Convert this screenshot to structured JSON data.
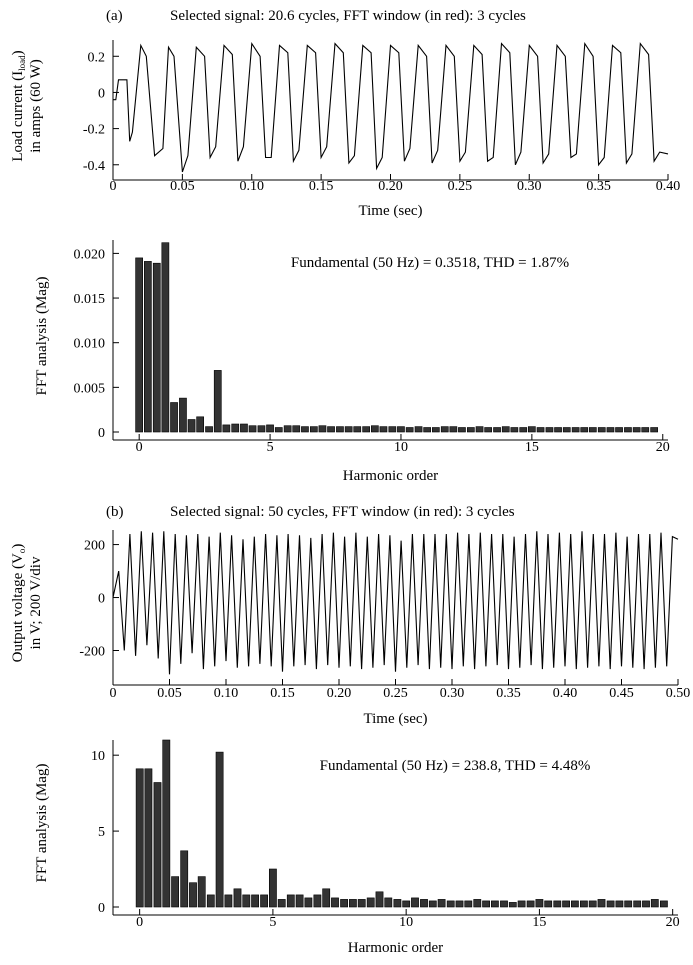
{
  "chart_data": [
    {
      "type": "line",
      "panel_label": "(a)",
      "title": "Selected signal: 20.6 cycles, FFT window (in red): 3 cycles",
      "xlabel": "Time (sec)",
      "ylabel": [
        "Load current (I",
        "load",
        ")",
        "in amps (60 W)"
      ],
      "xlim": [
        0,
        0.4
      ],
      "ylim": [
        -0.44,
        0.29
      ],
      "xticks": [
        0,
        0.05,
        0.1,
        0.15,
        0.2,
        0.25,
        0.3,
        0.35,
        0.4
      ],
      "xtick_labels": [
        "0",
        "0.05",
        "0.10",
        "0.15",
        "0.20",
        "0.25",
        "0.30",
        "0.35",
        "0.40"
      ],
      "yticks": [
        -0.4,
        -0.2,
        0,
        0.2
      ],
      "ytick_labels": [
        "-0.4",
        "-0.2",
        "0",
        "0.2"
      ],
      "x": [
        0,
        0.002,
        0.004,
        0.01,
        0.012,
        0.014,
        0.02,
        0.024,
        0.03,
        0.036,
        0.04,
        0.044,
        0.05,
        0.054,
        0.06,
        0.066,
        0.07,
        0.074,
        0.08,
        0.086,
        0.09,
        0.094,
        0.1,
        0.106,
        0.11,
        0.114,
        0.12,
        0.126,
        0.13,
        0.134,
        0.14,
        0.146,
        0.15,
        0.154,
        0.16,
        0.166,
        0.17,
        0.174,
        0.18,
        0.186,
        0.19,
        0.194,
        0.2,
        0.206,
        0.21,
        0.214,
        0.22,
        0.226,
        0.23,
        0.234,
        0.24,
        0.246,
        0.25,
        0.254,
        0.26,
        0.266,
        0.27,
        0.274,
        0.28,
        0.286,
        0.29,
        0.294,
        0.3,
        0.306,
        0.31,
        0.314,
        0.32,
        0.326,
        0.33,
        0.334,
        0.34,
        0.346,
        0.35,
        0.354,
        0.36,
        0.366,
        0.37,
        0.374,
        0.38,
        0.386,
        0.39,
        0.394,
        0.4
      ],
      "y": [
        -0.04,
        -0.04,
        0.07,
        0.07,
        -0.27,
        -0.22,
        0.26,
        0.2,
        -0.35,
        -0.31,
        0.25,
        0.2,
        -0.44,
        -0.35,
        0.25,
        0.2,
        -0.36,
        -0.3,
        0.26,
        0.21,
        -0.38,
        -0.3,
        0.27,
        0.2,
        -0.36,
        -0.36,
        0.26,
        0.22,
        -0.38,
        -0.32,
        0.26,
        0.22,
        -0.36,
        -0.3,
        0.27,
        0.22,
        -0.39,
        -0.35,
        0.26,
        0.22,
        -0.42,
        -0.36,
        0.26,
        0.22,
        -0.38,
        -0.31,
        0.26,
        0.2,
        -0.39,
        -0.32,
        0.26,
        0.2,
        -0.38,
        -0.33,
        0.26,
        0.21,
        -0.38,
        -0.36,
        0.27,
        0.22,
        -0.4,
        -0.33,
        0.26,
        0.2,
        -0.39,
        -0.34,
        0.26,
        0.2,
        -0.36,
        -0.34,
        0.27,
        0.2,
        -0.4,
        -0.36,
        0.26,
        0.22,
        -0.39,
        -0.34,
        0.27,
        0.21,
        -0.38,
        -0.33,
        -0.34
      ]
    },
    {
      "type": "bar",
      "title": "",
      "annotation": "Fundamental (50 Hz) = 0.3518, THD = 1.87%",
      "xlabel": "Harmonic order",
      "ylabel": "FFT analysis (Mag)",
      "xlim": [
        -1,
        20.2
      ],
      "ylim": [
        0,
        0.0215
      ],
      "xticks": [
        0,
        5,
        10,
        15,
        20
      ],
      "xtick_labels": [
        "0",
        "5",
        "10",
        "15",
        "20"
      ],
      "yticks": [
        0,
        0.005,
        0.01,
        0.015,
        0.02
      ],
      "ytick_labels": [
        "0",
        "0.005",
        "0.010",
        "0.015",
        "0.020"
      ],
      "bar_width_units": 0.27,
      "x": [
        0,
        0.33,
        0.67,
        1,
        1.33,
        1.67,
        2,
        2.33,
        2.67,
        3,
        3.33,
        3.67,
        4,
        4.33,
        4.67,
        5,
        5.33,
        5.67,
        6,
        6.33,
        6.67,
        7,
        7.33,
        7.67,
        8,
        8.33,
        8.67,
        9,
        9.33,
        9.67,
        10,
        10.33,
        10.67,
        11,
        11.33,
        11.67,
        12,
        12.33,
        12.67,
        13,
        13.33,
        13.67,
        14,
        14.33,
        14.67,
        15,
        15.33,
        15.67,
        16,
        16.33,
        16.67,
        17,
        17.33,
        17.67,
        18,
        18.33,
        18.67,
        19,
        19.33,
        19.67
      ],
      "values": [
        0.0195,
        0.0191,
        0.0189,
        0.0212,
        0.0033,
        0.0038,
        0.0014,
        0.0017,
        0.0006,
        0.0069,
        0.0008,
        0.0009,
        0.0009,
        0.0007,
        0.0007,
        0.0008,
        0.0005,
        0.0007,
        0.0007,
        0.0006,
        0.0006,
        0.0007,
        0.0006,
        0.0006,
        0.0006,
        0.0006,
        0.0006,
        0.0007,
        0.0006,
        0.0006,
        0.0006,
        0.0005,
        0.0006,
        0.0005,
        0.0005,
        0.0006,
        0.0006,
        0.0005,
        0.0005,
        0.0006,
        0.0005,
        0.0005,
        0.0006,
        0.0005,
        0.0005,
        0.0006,
        0.0005,
        0.0005,
        0.0005,
        0.0005,
        0.0005,
        0.0005,
        0.0005,
        0.0005,
        0.0005,
        0.0005,
        0.0005,
        0.0005,
        0.0005,
        0.0005
      ]
    },
    {
      "type": "line",
      "panel_label": "(b)",
      "title": "Selected signal: 50 cycles, FFT window (in red): 3 cycles",
      "xlabel": "Time (sec)",
      "ylabel": [
        "Output voltage (V",
        "o",
        ")",
        "in V; 200 V/div"
      ],
      "xlim": [
        0,
        0.5
      ],
      "ylim": [
        -300,
        255
      ],
      "xticks": [
        0,
        0.05,
        0.1,
        0.15,
        0.2,
        0.25,
        0.3,
        0.35,
        0.4,
        0.45,
        0.5
      ],
      "xtick_labels": [
        "0",
        "0.05",
        "0.10",
        "0.15",
        "0.20",
        "0.25",
        "0.30",
        "0.35",
        "0.40",
        "0.45",
        "0.50"
      ],
      "yticks": [
        -200,
        0,
        200
      ],
      "ytick_labels": [
        "-200",
        "0",
        "200"
      ],
      "x": [
        0,
        0.005,
        0.01,
        0.015,
        0.02,
        0.025,
        0.03,
        0.035,
        0.04,
        0.045,
        0.05,
        0.055,
        0.06,
        0.065,
        0.07,
        0.075,
        0.08,
        0.085,
        0.09,
        0.095,
        0.1,
        0.105,
        0.11,
        0.115,
        0.12,
        0.125,
        0.13,
        0.135,
        0.14,
        0.145,
        0.15,
        0.155,
        0.16,
        0.165,
        0.17,
        0.175,
        0.18,
        0.185,
        0.19,
        0.195,
        0.2,
        0.205,
        0.21,
        0.215,
        0.22,
        0.225,
        0.23,
        0.235,
        0.24,
        0.245,
        0.25,
        0.255,
        0.26,
        0.265,
        0.27,
        0.275,
        0.28,
        0.285,
        0.29,
        0.295,
        0.3,
        0.305,
        0.31,
        0.315,
        0.32,
        0.325,
        0.33,
        0.335,
        0.34,
        0.345,
        0.35,
        0.355,
        0.36,
        0.365,
        0.37,
        0.375,
        0.38,
        0.385,
        0.39,
        0.395,
        0.4,
        0.405,
        0.41,
        0.415,
        0.42,
        0.425,
        0.43,
        0.435,
        0.44,
        0.445,
        0.45,
        0.455,
        0.46,
        0.465,
        0.47,
        0.475,
        0.48,
        0.485,
        0.49,
        0.495,
        0.5
      ],
      "y": [
        0,
        100,
        -200,
        240,
        -220,
        250,
        -180,
        245,
        -230,
        250,
        -290,
        240,
        -250,
        235,
        -210,
        240,
        -270,
        230,
        -260,
        245,
        -240,
        235,
        -265,
        220,
        -260,
        230,
        -250,
        240,
        -260,
        235,
        -280,
        240,
        -260,
        235,
        -255,
        225,
        -270,
        240,
        -255,
        245,
        -265,
        230,
        -260,
        245,
        -270,
        230,
        -265,
        240,
        -255,
        235,
        -280,
        215,
        -265,
        240,
        -255,
        240,
        -270,
        240,
        -265,
        240,
        -270,
        245,
        -260,
        240,
        -270,
        245,
        -260,
        240,
        -255,
        240,
        -270,
        230,
        -265,
        240,
        -255,
        250,
        -270,
        240,
        -265,
        245,
        -260,
        240,
        -270,
        250,
        -265,
        240,
        -260,
        240,
        -270,
        245,
        -260,
        230,
        -265,
        240,
        -270,
        240,
        -265,
        245,
        -260,
        230,
        220
      ]
    },
    {
      "type": "bar",
      "title": "",
      "annotation": "Fundamental (50 Hz) = 238.8, THD = 4.48%",
      "xlabel": "Harmonic order",
      "ylabel": "FFT analysis (Mag)",
      "xlim": [
        -1,
        20.2
      ],
      "ylim": [
        0,
        11
      ],
      "xticks": [
        0,
        5,
        10,
        15,
        20
      ],
      "xtick_labels": [
        "0",
        "5",
        "10",
        "15",
        "20"
      ],
      "yticks": [
        0,
        5,
        10
      ],
      "ytick_labels": [
        "0",
        "5",
        "10"
      ],
      "bar_width_units": 0.27,
      "x": [
        0,
        0.33,
        0.67,
        1,
        1.33,
        1.67,
        2,
        2.33,
        2.67,
        3,
        3.33,
        3.67,
        4,
        4.33,
        4.67,
        5,
        5.33,
        5.67,
        6,
        6.33,
        6.67,
        7,
        7.33,
        7.67,
        8,
        8.33,
        8.67,
        9,
        9.33,
        9.67,
        10,
        10.33,
        10.67,
        11,
        11.33,
        11.67,
        12,
        12.33,
        12.67,
        13,
        13.33,
        13.67,
        14,
        14.33,
        14.67,
        15,
        15.33,
        15.67,
        16,
        16.33,
        16.67,
        17,
        17.33,
        17.67,
        18,
        18.33,
        18.67,
        19,
        19.33,
        19.67
      ],
      "values": [
        9.1,
        9.1,
        8.2,
        11.0,
        2.0,
        3.7,
        1.6,
        2.0,
        0.8,
        10.2,
        0.8,
        1.2,
        0.8,
        0.8,
        0.8,
        2.5,
        0.5,
        0.8,
        0.8,
        0.6,
        0.8,
        1.2,
        0.6,
        0.5,
        0.5,
        0.5,
        0.6,
        1.0,
        0.6,
        0.5,
        0.4,
        0.6,
        0.5,
        0.4,
        0.5,
        0.4,
        0.4,
        0.4,
        0.5,
        0.4,
        0.4,
        0.4,
        0.3,
        0.4,
        0.4,
        0.5,
        0.4,
        0.4,
        0.4,
        0.4,
        0.4,
        0.4,
        0.5,
        0.4,
        0.4,
        0.4,
        0.4,
        0.4,
        0.5,
        0.4
      ]
    }
  ]
}
